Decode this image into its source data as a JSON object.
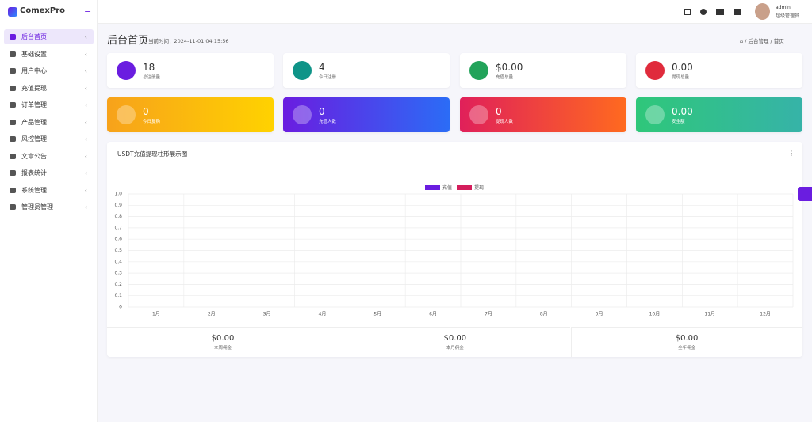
{
  "brand": "ComexPro",
  "menu": [
    "后台首页",
    "基础设置",
    "用户中心",
    "充值提现",
    "订单管理",
    "产品管理",
    "风控管理",
    "文章公告",
    "报表统计",
    "系统管理",
    "管理员管理"
  ],
  "header": {
    "user_name": "admin",
    "user_role": "超级管理员"
  },
  "page": {
    "title": "后台首页",
    "time": "当前时间：2024-11-01 04:15:56",
    "breadcrumb": [
      "后台管理",
      "首页"
    ]
  },
  "stats": [
    {
      "value": "18",
      "label": "总注册量"
    },
    {
      "value": "4",
      "label": "今日注册"
    },
    {
      "value": "$0.00",
      "label": "充值总量"
    },
    {
      "value": "0.00",
      "label": "提现总量"
    },
    {
      "value": "0",
      "label": "今日复购"
    },
    {
      "value": "0",
      "label": "充值人数"
    },
    {
      "value": "0",
      "label": "提现人数"
    },
    {
      "value": "0.00",
      "label": "安全额"
    }
  ],
  "chart_data": {
    "type": "bar",
    "title": "USDT充值提现柱形展示图",
    "categories": [
      "1月",
      "2月",
      "3月",
      "4月",
      "5月",
      "6月",
      "7月",
      "8月",
      "9月",
      "10月",
      "11月",
      "12月"
    ],
    "series": [
      {
        "name": "充值",
        "color": "#6a1de0",
        "values": [
          0,
          0,
          0,
          0,
          0,
          0,
          0,
          0,
          0,
          0,
          0,
          0
        ]
      },
      {
        "name": "提现",
        "color": "#d41e5c",
        "values": [
          0,
          0,
          0,
          0,
          0,
          0,
          0,
          0,
          0,
          0,
          0,
          0
        ]
      }
    ],
    "ylim": [
      0,
      1
    ],
    "yticks": [
      0,
      0.1,
      0.2,
      0.3,
      0.4,
      0.5,
      0.6,
      0.7,
      0.8,
      0.9,
      {
        "value": 1,
        "label": "1.0"
      }
    ],
    "grid": true,
    "legend": "top"
  },
  "summary": [
    {
      "value": "$0.00",
      "label": "本周佣金"
    },
    {
      "value": "$0.00",
      "label": "本月佣金"
    },
    {
      "value": "$0.00",
      "label": "全年佣金"
    }
  ]
}
